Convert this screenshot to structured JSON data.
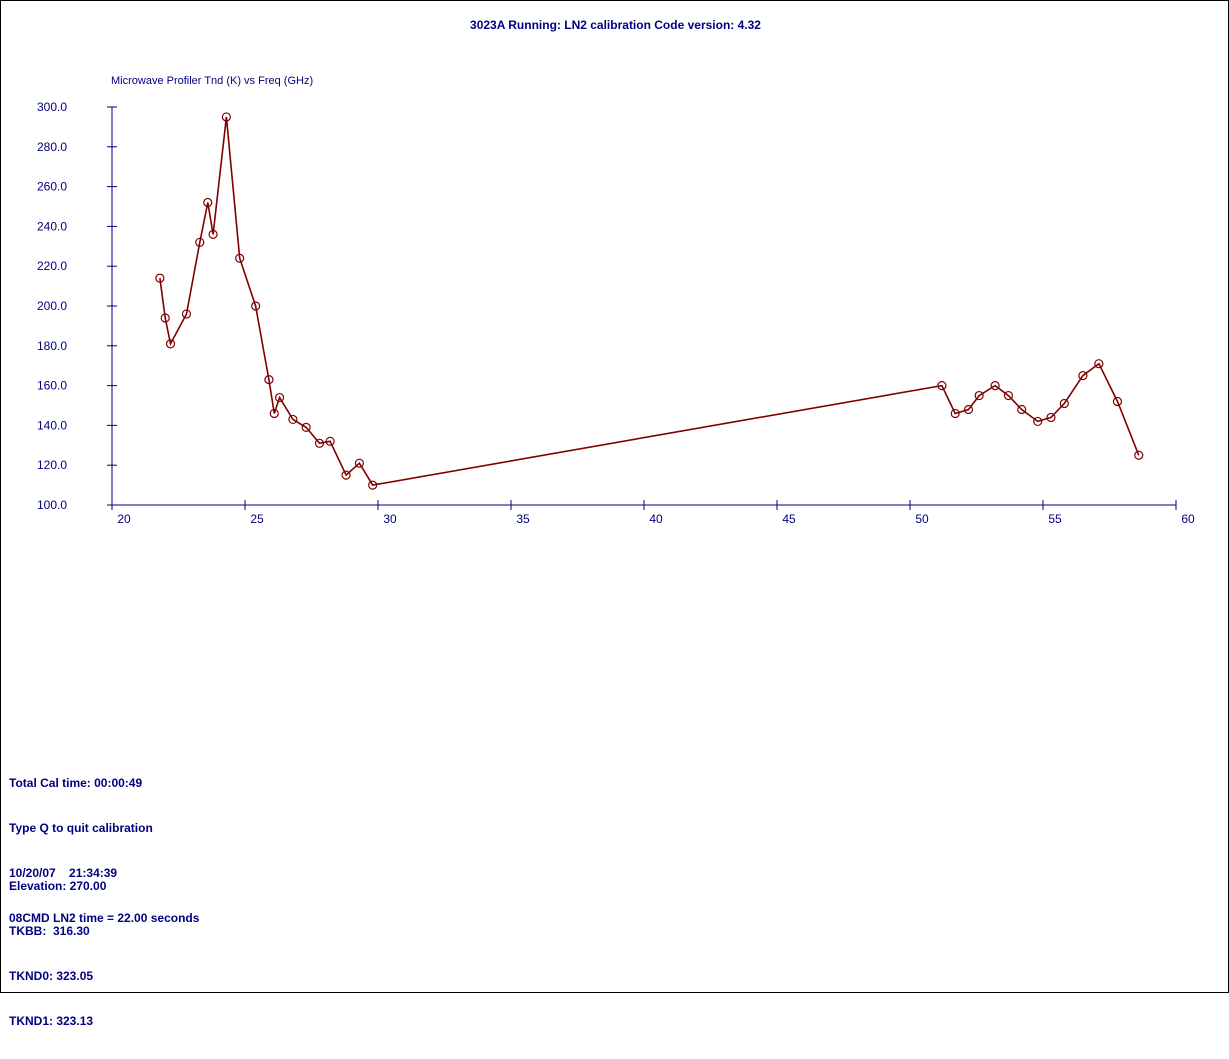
{
  "window": {
    "title": "3023A Running: LN2 calibration Code version: 4.32"
  },
  "colors": {
    "text": "#000080",
    "axis": "#000080",
    "series": "#800000"
  },
  "chart_data": {
    "type": "line",
    "title": "Microwave Profiler Tnd (K) vs Freq (GHz)",
    "xlabel": "",
    "ylabel": "",
    "xlim": [
      20,
      60
    ],
    "ylim": [
      100,
      300
    ],
    "x_ticks": [
      20,
      25,
      30,
      35,
      40,
      45,
      50,
      55,
      60
    ],
    "y_ticks": [
      "100.0",
      "120.0",
      "140.0",
      "160.0",
      "180.0",
      "200.0",
      "220.0",
      "240.0",
      "260.0",
      "280.0",
      "300.0"
    ],
    "grid": false,
    "marker": "circle",
    "series": [
      {
        "x": [
          21.8,
          22.0,
          22.2,
          22.8,
          23.3,
          23.6,
          23.8,
          24.3,
          24.8,
          25.4,
          25.9,
          26.1,
          26.3,
          26.8,
          27.3,
          27.8,
          28.2,
          28.8,
          29.3,
          29.8,
          51.2,
          51.7,
          52.2,
          52.6,
          53.2,
          53.7,
          54.2,
          54.8,
          55.3,
          55.8,
          56.5,
          57.1,
          57.8,
          58.6
        ],
        "y": [
          214,
          194,
          181,
          196,
          232,
          252,
          236,
          295,
          224,
          200,
          163,
          146,
          154,
          143,
          139,
          131,
          132,
          115,
          121,
          110,
          160,
          146,
          148,
          155,
          160,
          155,
          148,
          142,
          144,
          151,
          165,
          171,
          152,
          125
        ]
      }
    ]
  },
  "status_panel": {
    "lines": [
      "Total Cal time: 00:00:49",
      "Type Q to quit calibration",
      "10/20/07    21:34:39",
      "08CMD LN2 time = 22.00 seconds"
    ]
  },
  "readouts": {
    "lines": [
      "Elevation: 270.00",
      "TKBB:  316.30",
      "TKND0: 323.05",
      "TKND1: 323.13"
    ]
  }
}
